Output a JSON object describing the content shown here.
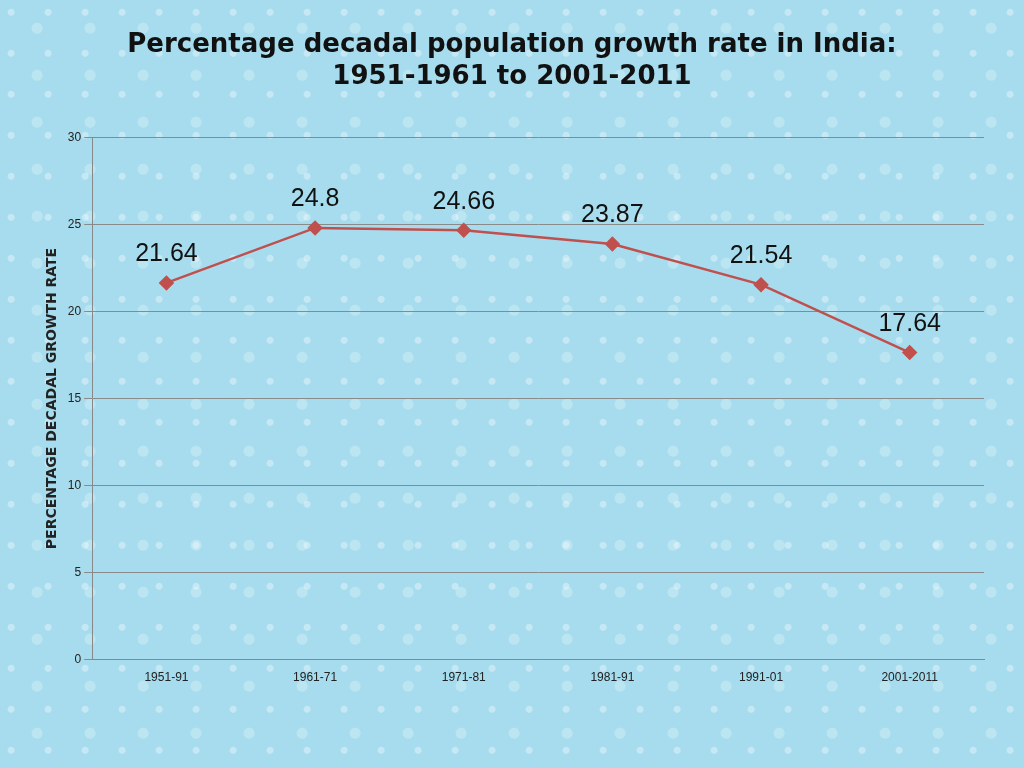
{
  "chart_data": {
    "type": "line",
    "title": [
      "Percentage decadal population growth rate in India:",
      "1951-1961 to 2001-2011"
    ],
    "y_label": "PERCENTAGE DECADAL GROWTH RATE",
    "categories": [
      "1951-91",
      "1961-71",
      "1971-81",
      "1981-91",
      "1991-01",
      "2001-2011"
    ],
    "values": [
      21.64,
      24.8,
      24.66,
      23.87,
      21.54,
      17.64
    ],
    "color": "#c0504d",
    "marker": "diamond",
    "line_style": "solid",
    "ylim": [
      0,
      30
    ],
    "yticks": [
      0,
      5,
      10,
      15,
      20,
      25,
      30
    ],
    "grid": true,
    "data_labels": true
  }
}
